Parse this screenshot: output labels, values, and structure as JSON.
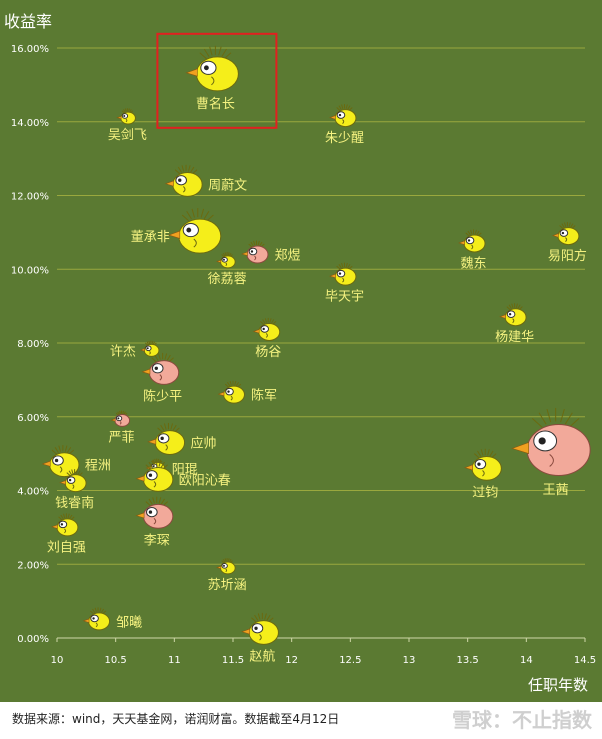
{
  "chart_data": {
    "type": "scatter",
    "title": "",
    "ylabel": "收益率",
    "xlabel": "任职年数",
    "xlim": [
      10,
      14.5
    ],
    "ylim": [
      0,
      16
    ],
    "x_ticks": [
      10,
      10.5,
      11,
      11.5,
      12,
      12.5,
      13,
      13.5,
      14,
      14.5
    ],
    "x_tick_labels": [
      "10",
      "10.5",
      "11",
      "11.5",
      "12",
      "12.5",
      "13",
      "13.5",
      "14",
      "14.5"
    ],
    "y_ticks": [
      0,
      2,
      4,
      6,
      8,
      10,
      12,
      14,
      16
    ],
    "y_tick_labels": [
      "0.00%",
      "2.00%",
      "4.00%",
      "6.00%",
      "8.00%",
      "10.00%",
      "12.00%",
      "14.00%",
      "16.00%"
    ],
    "highlight": "曹名长",
    "points": [
      {
        "name": "曹名长",
        "x": 11.35,
        "y": 15.3,
        "color": "yellow",
        "size": "large",
        "label_pos": "below"
      },
      {
        "name": "吴剑飞",
        "x": 10.6,
        "y": 14.1,
        "color": "yellow",
        "size": "tiny",
        "label_pos": "below"
      },
      {
        "name": "朱少醒",
        "x": 12.45,
        "y": 14.1,
        "color": "yellow",
        "size": "small",
        "label_pos": "below"
      },
      {
        "name": "周蔚文",
        "x": 11.1,
        "y": 12.3,
        "color": "yellow",
        "size": "medium",
        "label_pos": "right"
      },
      {
        "name": "董承非",
        "x": 11.2,
        "y": 10.9,
        "color": "yellow",
        "size": "large",
        "label_pos": "left"
      },
      {
        "name": "郑煜",
        "x": 11.7,
        "y": 10.4,
        "color": "pink",
        "size": "small",
        "label_pos": "right"
      },
      {
        "name": "徐荔蓉",
        "x": 11.45,
        "y": 10.2,
        "color": "yellow",
        "size": "tiny",
        "label_pos": "below"
      },
      {
        "name": "魏东",
        "x": 13.55,
        "y": 10.7,
        "color": "yellow",
        "size": "small",
        "label_pos": "below"
      },
      {
        "name": "易阳方",
        "x": 14.35,
        "y": 10.9,
        "color": "yellow",
        "size": "small",
        "label_pos": "below"
      },
      {
        "name": "毕天宇",
        "x": 12.45,
        "y": 9.8,
        "color": "yellow",
        "size": "small",
        "label_pos": "below"
      },
      {
        "name": "杨建华",
        "x": 13.9,
        "y": 8.7,
        "color": "yellow",
        "size": "small",
        "label_pos": "below"
      },
      {
        "name": "杨谷",
        "x": 11.8,
        "y": 8.3,
        "color": "yellow",
        "size": "small",
        "label_pos": "below"
      },
      {
        "name": "许杰",
        "x": 10.8,
        "y": 7.8,
        "color": "yellow",
        "size": "tiny",
        "label_pos": "left"
      },
      {
        "name": "陈少平",
        "x": 10.9,
        "y": 7.2,
        "color": "pink",
        "size": "medium",
        "label_pos": "below"
      },
      {
        "name": "陈军",
        "x": 11.5,
        "y": 6.6,
        "color": "yellow",
        "size": "small",
        "label_pos": "right"
      },
      {
        "name": "严菲",
        "x": 10.55,
        "y": 5.9,
        "color": "pink",
        "size": "tiny",
        "label_pos": "below"
      },
      {
        "name": "应帅",
        "x": 10.95,
        "y": 5.3,
        "color": "yellow",
        "size": "medium",
        "label_pos": "right"
      },
      {
        "name": "程洲",
        "x": 10.05,
        "y": 4.7,
        "color": "yellow",
        "size": "medium",
        "label_pos": "right"
      },
      {
        "name": "阳琨",
        "x": 10.85,
        "y": 4.6,
        "color": "yellow",
        "size": "tiny",
        "label_pos": "right"
      },
      {
        "name": "钱睿南",
        "x": 10.15,
        "y": 4.2,
        "color": "yellow",
        "size": "small",
        "label_pos": "below"
      },
      {
        "name": "欧阳沁春",
        "x": 10.85,
        "y": 4.3,
        "color": "yellow",
        "size": "medium",
        "label_pos": "right"
      },
      {
        "name": "过钧",
        "x": 13.65,
        "y": 4.6,
        "color": "yellow",
        "size": "medium",
        "label_pos": "below"
      },
      {
        "name": "王茜",
        "x": 14.25,
        "y": 5.1,
        "color": "pink",
        "size": "xlarge",
        "label_pos": "below"
      },
      {
        "name": "李琛",
        "x": 10.85,
        "y": 3.3,
        "color": "pink",
        "size": "medium",
        "label_pos": "below"
      },
      {
        "name": "刘自强",
        "x": 10.08,
        "y": 3.0,
        "color": "yellow",
        "size": "small",
        "label_pos": "below"
      },
      {
        "name": "苏圻涵",
        "x": 11.45,
        "y": 1.9,
        "color": "yellow",
        "size": "tiny",
        "label_pos": "below"
      },
      {
        "name": "邹曦",
        "x": 10.35,
        "y": 0.45,
        "color": "yellow",
        "size": "small",
        "label_pos": "right"
      },
      {
        "name": "赵航",
        "x": 11.75,
        "y": 0.15,
        "color": "yellow",
        "size": "medium",
        "label_pos": "below"
      }
    ]
  },
  "footer": {
    "source": "数据来源：wind，天天基金网，诺润财富。数据截至4月12日",
    "brand": "雪球：不止指数"
  }
}
